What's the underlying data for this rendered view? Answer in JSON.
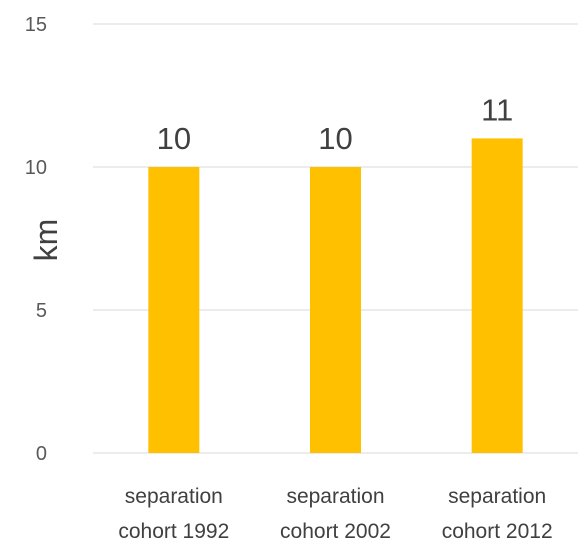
{
  "chart_data": {
    "type": "bar",
    "categories": [
      [
        "separation",
        "cohort 1992"
      ],
      [
        "separation",
        "cohort 2002"
      ],
      [
        "separation",
        "cohort 2012"
      ]
    ],
    "values": [
      10,
      10,
      11
    ],
    "data_labels": [
      "10",
      "10",
      "11"
    ],
    "ylabel": "km",
    "xlabel": "",
    "ylim": [
      0,
      15
    ],
    "yticks": [
      0,
      5,
      10,
      15
    ],
    "grid": true,
    "bar_color": "#FFC000"
  }
}
